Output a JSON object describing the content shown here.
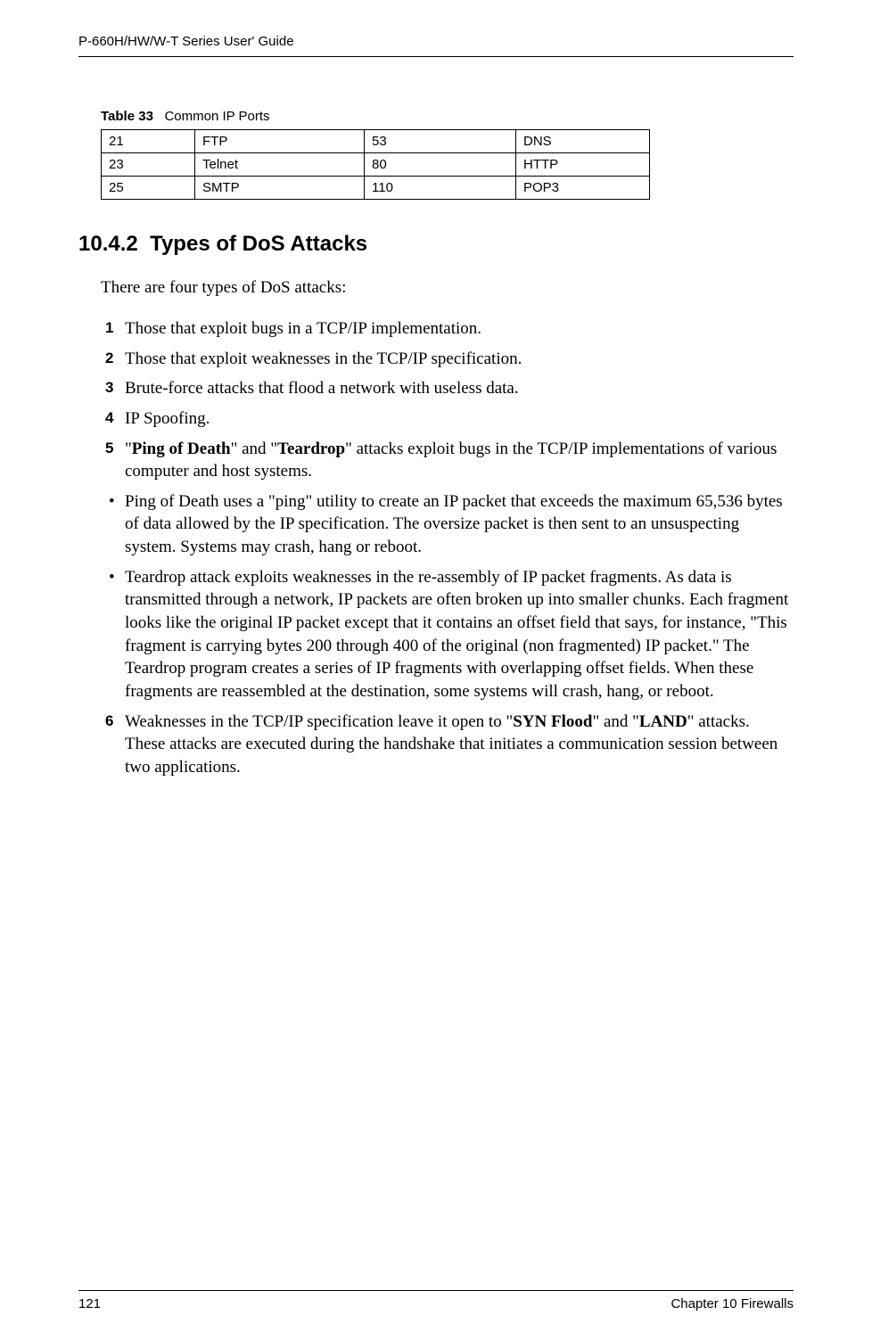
{
  "header": {
    "running_head": "P-660H/HW/W-T Series User' Guide"
  },
  "table": {
    "caption_label": "Table 33",
    "caption_text": "Common IP Ports",
    "columns": [
      "col1",
      "col2",
      "col3",
      "col4"
    ],
    "rows": [
      [
        "21",
        "FTP",
        "53",
        "DNS"
      ],
      [
        "23",
        "Telnet",
        "80",
        "HTTP"
      ],
      [
        "25",
        "SMTP",
        "110",
        "POP3"
      ]
    ]
  },
  "section": {
    "number": "10.4.2",
    "title": "Types of DoS Attacks",
    "intro": "There are four types of DoS attacks:"
  },
  "list": {
    "items": [
      {
        "num": "1",
        "text": "Those that exploit bugs in a TCP/IP implementation."
      },
      {
        "num": "2",
        "text": "Those that exploit weaknesses in the TCP/IP specification."
      },
      {
        "num": "3",
        "text": "Brute-force attacks that flood a network with useless data."
      },
      {
        "num": "4",
        "text": "IP Spoofing."
      },
      {
        "num": "5",
        "pre": "\"",
        "b1": "Ping of Death",
        "mid": "\" and \"",
        "b2": "Teardrop",
        "post": "\" attacks exploit bugs in the TCP/IP implementations of various computer and host systems."
      }
    ],
    "bullets": [
      "Ping of Death uses a \"ping\" utility to create an IP packet that exceeds the maximum 65,536 bytes of data allowed by the IP specification. The oversize packet is then sent to an unsuspecting system. Systems may crash, hang or reboot.",
      "Teardrop attack exploits weaknesses in the re-assembly of IP packet fragments. As data is transmitted through a network, IP packets are often broken up into smaller chunks. Each fragment looks like the original IP packet except that it contains an offset field that says, for instance, \"This fragment is carrying bytes 200 through 400 of the original (non fragmented) IP packet.\" The Teardrop program creates a series of IP fragments with overlapping offset fields. When these fragments are reassembled at the destination, some systems will crash, hang, or reboot."
    ],
    "item6": {
      "num": "6",
      "pre": "Weaknesses in the TCP/IP specification leave it open to \"",
      "b1": "SYN Flood",
      "mid": "\" and \"",
      "b2": "LAND",
      "post": "\" attacks. These attacks are executed during the handshake that initiates a communication session between two applications."
    }
  },
  "footer": {
    "page": "121",
    "chapter": "Chapter 10 Firewalls"
  }
}
